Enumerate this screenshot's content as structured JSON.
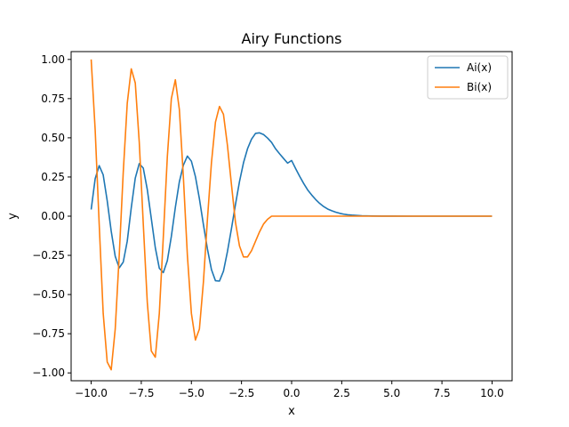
{
  "chart_data": {
    "type": "line",
    "title": "Airy Functions",
    "xlabel": "x",
    "ylabel": "y",
    "xlim": [
      -11.0,
      11.0
    ],
    "ylim": [
      -1.05,
      1.05
    ],
    "xticks": [
      -10.0,
      -7.5,
      -5.0,
      -2.5,
      0.0,
      2.5,
      5.0,
      7.5,
      10.0
    ],
    "xtick_labels": [
      "−10.0",
      "−7.5",
      "−5.0",
      "−2.5",
      "0.0",
      "2.5",
      "5.0",
      "7.5",
      "10.0"
    ],
    "yticks": [
      -1.0,
      -0.75,
      -0.5,
      -0.25,
      0.0,
      0.25,
      0.5,
      0.75,
      1.0
    ],
    "ytick_labels": [
      "−1.00",
      "−0.75",
      "−0.50",
      "−0.25",
      "0.00",
      "0.25",
      "0.50",
      "0.75",
      "1.00"
    ],
    "grid": false,
    "legend_position": "top-right",
    "series": [
      {
        "name": "Ai(x)",
        "color": "#1f77b4",
        "x": [
          -10.0,
          -9.8,
          -9.6,
          -9.4,
          -9.2,
          -9.0,
          -8.8,
          -8.6,
          -8.4,
          -8.2,
          -8.0,
          -7.8,
          -7.6,
          -7.4,
          -7.2,
          -7.0,
          -6.8,
          -6.6,
          -6.4,
          -6.2,
          -6.0,
          -5.8,
          -5.6,
          -5.4,
          -5.2,
          -5.0,
          -4.8,
          -4.6,
          -4.4,
          -4.2,
          -4.0,
          -3.8,
          -3.6,
          -3.4,
          -3.2,
          -3.0,
          -2.8,
          -2.6,
          -2.4,
          -2.2,
          -2.0,
          -1.8,
          -1.6,
          -1.4,
          -1.2,
          -1.0,
          -0.8,
          -0.6,
          -0.4,
          -0.2,
          0.0,
          0.2,
          0.4,
          0.6,
          0.8,
          1.0,
          1.2,
          1.4,
          1.6,
          1.8,
          2.0,
          2.2,
          2.4,
          2.6,
          2.8,
          3.0,
          3.5,
          4.0,
          4.5,
          5.0,
          6.0,
          7.0,
          8.0,
          9.0,
          10.0
        ],
        "y": [
          0.0424,
          0.2389,
          0.3222,
          0.2634,
          0.0986,
          -0.0957,
          -0.2562,
          -0.3298,
          -0.293,
          -0.1595,
          0.0536,
          0.2431,
          0.3355,
          0.3063,
          0.1699,
          -0.0147,
          -0.2012,
          -0.3325,
          -0.36,
          -0.2836,
          -0.129,
          0.0565,
          0.2196,
          0.3255,
          0.3834,
          0.3508,
          0.2531,
          0.111,
          -0.0538,
          -0.2096,
          -0.3403,
          -0.4119,
          -0.4144,
          -0.3507,
          -0.2251,
          -0.0789,
          0.0754,
          0.2207,
          0.3411,
          0.43,
          0.4913,
          0.5281,
          0.5315,
          0.5205,
          0.4983,
          0.4705,
          0.4297,
          0.3978,
          0.3679,
          0.3384,
          0.355,
          0.3037,
          0.2545,
          0.209,
          0.1677,
          0.1353,
          0.1063,
          0.0815,
          0.0612,
          0.0455,
          0.0349,
          0.0255,
          0.0182,
          0.0127,
          0.0087,
          0.0066,
          0.0029,
          0.001,
          0.0003,
          0.0001,
          0.0,
          0.0,
          0.0,
          0.0,
          0.0
        ]
      },
      {
        "name": "Bi(x)",
        "color": "#ff7f0e",
        "x": [
          -10.0,
          -9.8,
          -9.6,
          -9.4,
          -9.2,
          -9.0,
          -8.8,
          -8.6,
          -8.4,
          -8.2,
          -8.0,
          -7.8,
          -7.6,
          -7.4,
          -7.2,
          -7.0,
          -6.8,
          -6.6,
          -6.4,
          -6.2,
          -6.0,
          -5.8,
          -5.6,
          -5.4,
          -5.2,
          -5.0,
          -4.8,
          -4.6,
          -4.4,
          -4.2,
          -4.0,
          -3.8,
          -3.6,
          -3.4,
          -3.2,
          -3.0,
          -2.8,
          -2.6,
          -2.4,
          -2.2,
          -2.0,
          -1.8,
          -1.6,
          -1.4,
          -1.2,
          -1.0,
          -0.8,
          -0.6,
          -0.4,
          -0.2,
          0.0,
          0.2,
          0.4,
          0.6,
          0.8,
          1.0,
          1.2,
          1.4,
          1.6,
          1.8,
          2.0,
          2.2,
          2.4,
          2.6,
          2.8,
          3.0,
          3.5,
          4.0,
          4.5,
          5.0,
          6.0,
          7.0,
          8.0,
          9.0,
          10.0
        ],
        "y": [
          1.0,
          0.55,
          -0.05,
          -0.62,
          -0.93,
          -0.98,
          -0.72,
          -0.25,
          0.28,
          0.72,
          0.94,
          0.85,
          0.47,
          -0.05,
          -0.55,
          -0.86,
          -0.9,
          -0.62,
          -0.13,
          0.38,
          0.75,
          0.87,
          0.68,
          0.25,
          -0.25,
          -0.62,
          -0.79,
          -0.72,
          -0.42,
          -0.02,
          0.34,
          0.6,
          0.7,
          0.65,
          0.45,
          0.2,
          -0.04,
          -0.19,
          -0.26,
          -0.26,
          -0.22,
          -0.16,
          -0.1,
          -0.05,
          -0.02,
          -0.0,
          0.0,
          0.0,
          0.0,
          0.0,
          0.0,
          0.0,
          0.0,
          0.0,
          0.0,
          0.0,
          0.0,
          0.0,
          0.0,
          0.0,
          0.0,
          0.0,
          0.0,
          0.0,
          0.0,
          0.0,
          0.0,
          0.0,
          0.0,
          0.0,
          0.0,
          0.0,
          0.0,
          0.0,
          0.0
        ]
      }
    ]
  }
}
